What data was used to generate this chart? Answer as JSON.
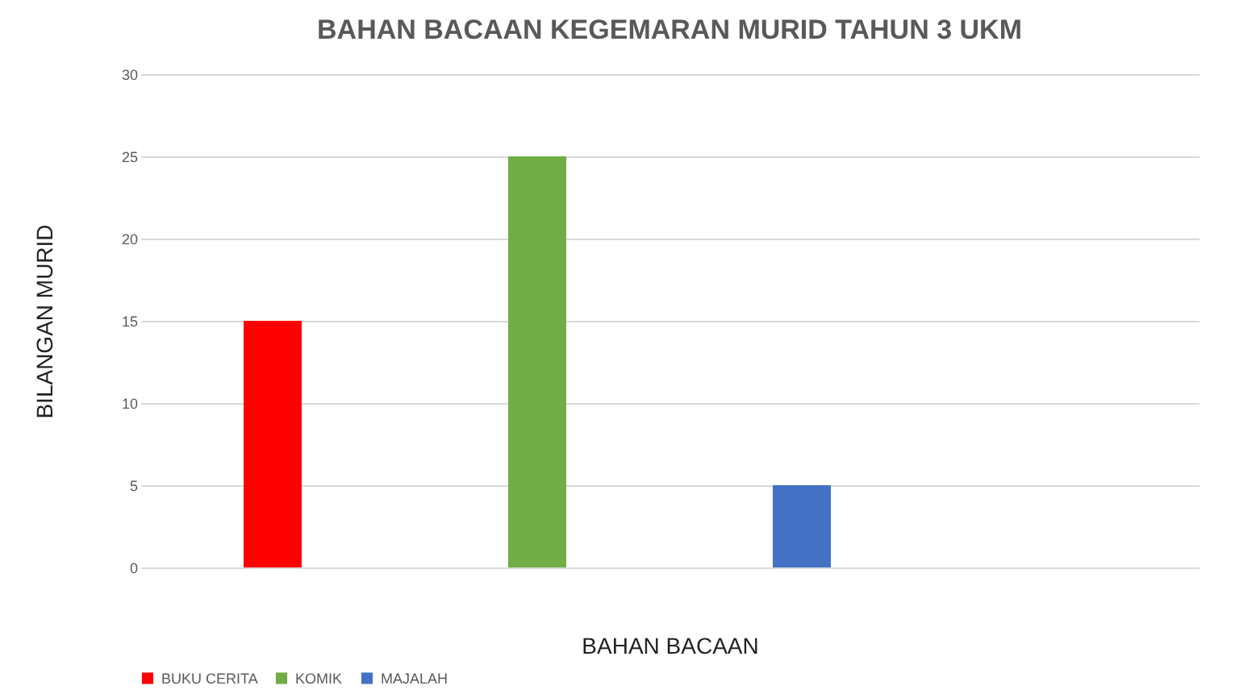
{
  "chart_data": {
    "type": "bar",
    "title": "BAHAN BACAAN KEGEMARAN MURID  TAHUN 3 UKM",
    "xlabel": "BAHAN BACAAN",
    "ylabel": "BILANGAN  MURID",
    "categories": [
      null,
      null,
      null,
      null
    ],
    "series": [
      {
        "name": "BUKU CERITA",
        "color": "#ff0000",
        "values": [
          15,
          null,
          null,
          null
        ]
      },
      {
        "name": "KOMIK",
        "color": "#70ad47",
        "values": [
          null,
          25,
          null,
          null
        ]
      },
      {
        "name": "MAJALAH",
        "color": "#4472c4",
        "values": [
          null,
          null,
          5,
          null
        ]
      }
    ],
    "ylim": [
      0,
      30
    ],
    "yticks": [
      0,
      5,
      10,
      15,
      20,
      25,
      30
    ],
    "grid": "y",
    "legend": "bottom"
  }
}
